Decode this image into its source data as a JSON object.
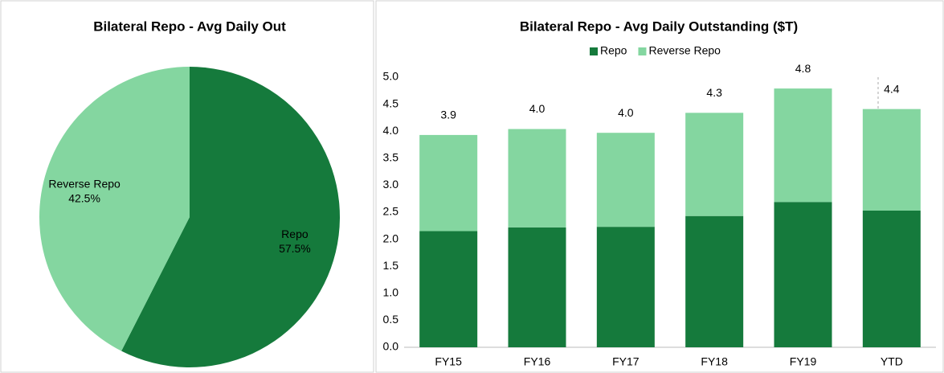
{
  "chart_data": [
    {
      "type": "pie",
      "title": "Bilateral Repo - Avg Daily Out",
      "categories": [
        "Repo",
        "Reverse Repo"
      ],
      "values": [
        57.5,
        42.5
      ],
      "value_labels": [
        "57.5%",
        "42.5%"
      ],
      "colors": [
        "#157a3c",
        "#84d6a0"
      ]
    },
    {
      "type": "bar",
      "title": "Bilateral Repo - Avg Daily Outstanding ($T)",
      "stacked": true,
      "legend": "top",
      "categories": [
        "FY15",
        "FY16",
        "FY17",
        "FY18",
        "FY19",
        "YTD"
      ],
      "series": [
        {
          "name": "Repo",
          "color": "#157a3c",
          "values": [
            2.15,
            2.22,
            2.23,
            2.43,
            2.69,
            2.53
          ]
        },
        {
          "name": "Reverse Repo",
          "color": "#84d6a0",
          "values": [
            1.78,
            1.82,
            1.74,
            1.91,
            2.1,
            1.88
          ]
        }
      ],
      "totals": [
        3.93,
        4.04,
        3.97,
        4.34,
        4.79,
        4.41
      ],
      "total_labels": [
        "3.9",
        "4.0",
        "4.0",
        "4.3",
        "4.8",
        "4.4"
      ],
      "ylim": [
        0,
        5
      ],
      "yticks": [
        {
          "value": 0,
          "label": "0.0"
        },
        0.5,
        {
          "value": 1,
          "label": "1.0"
        },
        1.5,
        {
          "value": 2,
          "label": "2.0"
        },
        2.5,
        {
          "value": 3,
          "label": "3.0"
        },
        3.5,
        {
          "value": 4,
          "label": "4.0"
        },
        4.5,
        {
          "value": 5,
          "label": "5.0"
        }
      ]
    }
  ]
}
